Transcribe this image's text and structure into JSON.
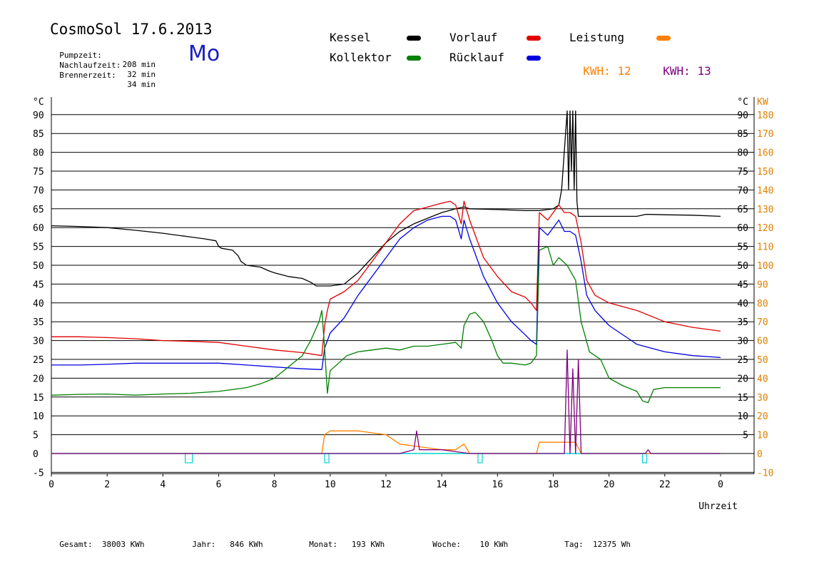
{
  "header": {
    "title": "CosmoSol 17.6.2013",
    "day": "Mo",
    "stats": [
      {
        "label": "Pumpzeit:",
        "value": "208 min"
      },
      {
        "label": "Nachlaufzeit:",
        "value": "32 min"
      },
      {
        "label": "Brennerzeit:",
        "value": "34 min"
      }
    ]
  },
  "legend": {
    "kessel": "Kessel",
    "vorlauf": "Vorlauf",
    "leistung": "Leistung",
    "kollektor": "Kollektor",
    "ruecklauf": "Rücklauf",
    "kwh1_label": "KWH:",
    "kwh1_value": "12",
    "kwh2_label": "KWH:",
    "kwh2_value": "13"
  },
  "footer": {
    "gesamt_label": "Gesamt:",
    "gesamt_value": "38003 KWh",
    "jahr_label": "Jahr:",
    "jahr_value": "846 KWh",
    "monat_label": "Monat:",
    "monat_value": "193 KWh",
    "woche_label": "Woche:",
    "woche_value": "10 KWh",
    "tag_label": "Tag:",
    "tag_value": "12375 Wh"
  },
  "colors": {
    "kessel": "#000000",
    "vorlauf": "#e00000",
    "leistung": "#ff8000",
    "kollektor": "#008000",
    "ruecklauf": "#0000e0",
    "kwh2": "#800080",
    "baseline": "#00d0d0",
    "right_axis": "#e08000"
  },
  "chart_data": {
    "type": "line",
    "xlabel": "Uhrzeit",
    "ylabel_left": "°C",
    "ylabel_right_c": "°C",
    "ylabel_right_kw": "KW",
    "xlim": [
      0,
      24
    ],
    "ylim": [
      -5,
      95
    ],
    "ylim_right_kw": [
      -10,
      190
    ],
    "grid": true,
    "x_ticks": [
      "0",
      "2",
      "4",
      "6",
      "8",
      "10",
      "12",
      "14",
      "16",
      "18",
      "20",
      "22",
      "0"
    ],
    "x_tick_values": [
      0,
      2,
      4,
      6,
      8,
      10,
      12,
      14,
      16,
      18,
      20,
      22,
      24
    ],
    "y_left_ticks": [
      "-5",
      "0",
      "5",
      "10",
      "15",
      "20",
      "25",
      "30",
      "35",
      "40",
      "45",
      "50",
      "55",
      "60",
      "65",
      "70",
      "75",
      "80",
      "85",
      "90"
    ],
    "y_right_ticks": [
      "5",
      "10",
      "15",
      "20",
      "25",
      "30",
      "35",
      "40",
      "45",
      "50",
      "55",
      "60",
      "65",
      "70",
      "75",
      "80",
      "85",
      "90"
    ],
    "y_right_kw_ticks": [
      "-10",
      "0",
      "10",
      "20",
      "30",
      "40",
      "50",
      "60",
      "70",
      "80",
      "90",
      "100",
      "110",
      "120",
      "130",
      "140",
      "150",
      "160",
      "170",
      "180"
    ],
    "series": [
      {
        "name": "Kessel",
        "color": "#000000",
        "x": [
          0,
          1,
          2,
          3,
          4,
          5,
          5.5,
          5.9,
          6,
          6.1,
          6.5,
          6.7,
          6.8,
          7,
          7.5,
          7.8,
          8,
          8.5,
          9,
          9.3,
          9.5,
          10,
          10.5,
          11,
          11.5,
          12,
          12.5,
          13,
          13.5,
          14,
          14.5,
          14.8,
          15,
          16,
          17,
          17.5,
          18,
          18.2,
          18.3,
          18.5,
          18.55,
          18.6,
          18.65,
          18.7,
          18.75,
          18.8,
          18.85,
          18.9,
          18.95,
          19,
          19.5,
          20,
          21,
          21.3,
          21.5,
          22,
          23,
          24
        ],
        "y": [
          60.5,
          60.3,
          60,
          59.3,
          58.5,
          57.5,
          57,
          56.5,
          55,
          54.5,
          54,
          52.5,
          51,
          50,
          49.5,
          48.5,
          48,
          47,
          46.5,
          45.5,
          44.5,
          44.5,
          45,
          48,
          52,
          56,
          59,
          61,
          62.5,
          64,
          65,
          65.5,
          65,
          64.8,
          64.5,
          64.5,
          65,
          66,
          70,
          91,
          70,
          91,
          75,
          91,
          70,
          91,
          67,
          63,
          63,
          63,
          63,
          63,
          63,
          63.5,
          63.5,
          63.4,
          63.3,
          63
        ]
      },
      {
        "name": "Vorlauf",
        "color": "#e00000",
        "x": [
          0,
          1,
          2,
          3,
          4,
          5,
          6,
          7,
          8,
          9,
          9.7,
          9.8,
          9.9,
          10,
          10.5,
          11,
          11.5,
          12,
          12.5,
          13,
          13.5,
          14,
          14.3,
          14.5,
          14.7,
          14.8,
          15,
          15.5,
          16,
          16.5,
          17,
          17.2,
          17.4,
          17.5,
          17.8,
          18,
          18.2,
          18.4,
          18.6,
          18.8,
          19,
          19.2,
          19.5,
          20,
          21,
          22,
          23,
          24
        ],
        "y": [
          31,
          31,
          30.8,
          30.5,
          30,
          29.8,
          29.5,
          28.5,
          27.5,
          26.8,
          26,
          34,
          38,
          41,
          43,
          46,
          51,
          56,
          61,
          64.5,
          65.5,
          66.5,
          67,
          66,
          61,
          67,
          62,
          52,
          47,
          43,
          41.5,
          40,
          38,
          64,
          62,
          64,
          66,
          64,
          64,
          63,
          56,
          46,
          42,
          40,
          38,
          35,
          33.5,
          32.5
        ]
      },
      {
        "name": "Rücklauf",
        "color": "#0000e0",
        "x": [
          0,
          1,
          2,
          3,
          4,
          5,
          6,
          7,
          8,
          9,
          9.7,
          9.8,
          9.9,
          10,
          10.5,
          11,
          11.5,
          12,
          12.5,
          13,
          13.5,
          14,
          14.3,
          14.5,
          14.7,
          14.8,
          15,
          15.5,
          16,
          16.5,
          17,
          17.2,
          17.4,
          17.5,
          17.8,
          18,
          18.2,
          18.4,
          18.6,
          18.8,
          19,
          19.2,
          19.5,
          20,
          21,
          22,
          23,
          24
        ],
        "y": [
          23.5,
          23.5,
          23.7,
          24,
          24,
          24,
          24,
          23.5,
          23,
          22.5,
          22.3,
          28,
          30,
          32,
          36,
          42,
          47,
          52,
          57,
          60,
          62,
          63,
          63,
          62,
          57,
          62,
          57,
          47,
          40,
          35,
          31.5,
          30,
          29,
          60,
          58,
          60,
          62,
          59,
          59,
          58,
          51,
          42,
          38,
          34,
          29,
          27,
          26,
          25.5
        ]
      },
      {
        "name": "Kollektor",
        "color": "#008000",
        "x": [
          0,
          1,
          2,
          3,
          4,
          5,
          6,
          7,
          7.5,
          8,
          8.5,
          9,
          9.3,
          9.6,
          9.7,
          9.8,
          9.9,
          10,
          10.3,
          10.6,
          11,
          11.5,
          12,
          12.5,
          13,
          13.5,
          14,
          14.5,
          14.7,
          14.8,
          15,
          15.2,
          15.5,
          15.8,
          16,
          16.2,
          16.5,
          17,
          17.2,
          17.4,
          17.5,
          17.8,
          18,
          18.2,
          18.5,
          18.8,
          19,
          19.3,
          19.7,
          20,
          20.5,
          21,
          21.2,
          21.4,
          21.6,
          22,
          23,
          24
        ],
        "y": [
          15.5,
          15.7,
          15.8,
          15.5,
          15.8,
          16,
          16.5,
          17.5,
          18.5,
          20,
          23,
          26,
          30,
          35,
          38,
          28,
          16,
          22,
          24,
          26,
          27,
          27.5,
          28,
          27.5,
          28.5,
          28.5,
          29,
          29.5,
          28,
          34,
          37,
          37.5,
          35,
          30,
          26,
          24,
          24,
          23.5,
          24,
          26,
          54,
          55,
          50,
          52,
          50,
          46,
          35,
          27,
          25,
          20,
          18,
          16.5,
          14,
          13.5,
          17,
          17.5,
          17.5,
          17.5
        ]
      },
      {
        "name": "Leistung",
        "color": "#ff8000",
        "axis": "right_kw",
        "x": [
          0,
          9.7,
          9.8,
          10,
          10.5,
          11,
          11.5,
          12,
          12.5,
          13,
          13.5,
          14,
          14.5,
          14.8,
          15,
          17.4,
          17.5,
          17.8,
          18,
          18.3,
          18.6,
          18.8,
          19,
          24
        ],
        "y": [
          0,
          0,
          10,
          12,
          12,
          12,
          11,
          10,
          5,
          4,
          3,
          2,
          2,
          5,
          0,
          0,
          6,
          6,
          6,
          6,
          6,
          6,
          0,
          0
        ]
      },
      {
        "name": "KWH 13",
        "color": "#800080",
        "axis": "right_kw",
        "x": [
          0,
          12.5,
          13,
          13.1,
          13.2,
          14,
          14.5,
          15,
          18.4,
          18.5,
          18.6,
          18.7,
          18.8,
          18.9,
          19,
          21.3,
          21.4,
          21.5,
          24
        ],
        "y": [
          0,
          0,
          2,
          12,
          2,
          2,
          1,
          0,
          0,
          55,
          0,
          45,
          0,
          50,
          0,
          0,
          2,
          0,
          0
        ]
      }
    ]
  }
}
